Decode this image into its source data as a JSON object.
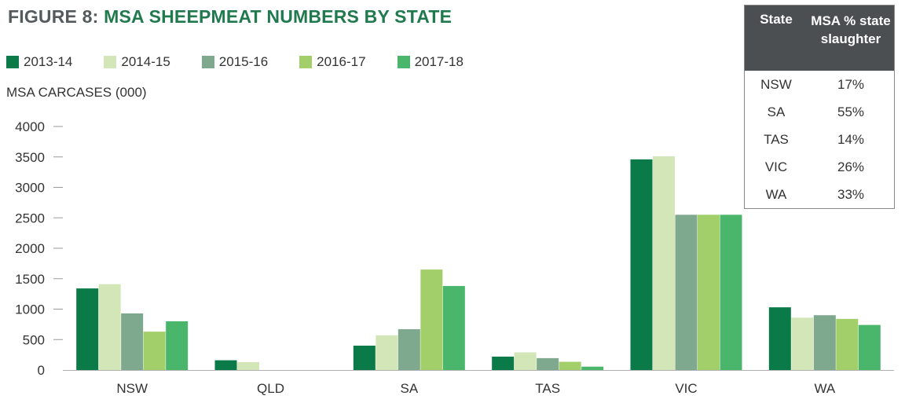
{
  "title_prefix": "FIGURE 8:",
  "title_main": "MSA SHEEPMEAT NUMBERS BY STATE",
  "legend": [
    {
      "label": "2013-14",
      "color": "#0a7a49"
    },
    {
      "label": "2014-15",
      "color": "#d2e6b8"
    },
    {
      "label": "2015-16",
      "color": "#7fa98e"
    },
    {
      "label": "2016-17",
      "color": "#a2cf6a"
    },
    {
      "label": "2017-18",
      "color": "#4ab66c"
    }
  ],
  "state_table": {
    "header_state": "State",
    "header_pct": "MSA % state slaughter",
    "rows": [
      {
        "state": "NSW",
        "pct": "17%"
      },
      {
        "state": "SA",
        "pct": "55%"
      },
      {
        "state": "TAS",
        "pct": "14%"
      },
      {
        "state": "VIC",
        "pct": "26%"
      },
      {
        "state": "WA",
        "pct": "33%"
      }
    ]
  },
  "chart_data": {
    "type": "bar",
    "title": "FIGURE 8: MSA SHEEPMEAT NUMBERS BY STATE",
    "ylabel": "MSA CARCASES (000)",
    "xlabel": "",
    "categories": [
      "NSW",
      "QLD",
      "SA",
      "TAS",
      "VIC",
      "WA"
    ],
    "ylim": [
      0,
      4000
    ],
    "yticks": [
      0,
      500,
      1000,
      1500,
      2000,
      2500,
      3000,
      3500,
      4000
    ],
    "grid": false,
    "legend_position": "top-left",
    "series": [
      {
        "name": "2013-14",
        "color": "#0a7a49",
        "values": [
          1340,
          160,
          400,
          220,
          3460,
          1030
        ]
      },
      {
        "name": "2014-15",
        "color": "#d2e6b8",
        "values": [
          1410,
          130,
          570,
          290,
          3510,
          860
        ]
      },
      {
        "name": "2015-16",
        "color": "#7fa98e",
        "values": [
          930,
          0,
          670,
          195,
          2550,
          900
        ]
      },
      {
        "name": "2016-17",
        "color": "#a2cf6a",
        "values": [
          630,
          0,
          1650,
          135,
          2550,
          840
        ]
      },
      {
        "name": "2017-18",
        "color": "#4ab66c",
        "values": [
          800,
          0,
          1380,
          55,
          2550,
          740
        ]
      }
    ]
  }
}
